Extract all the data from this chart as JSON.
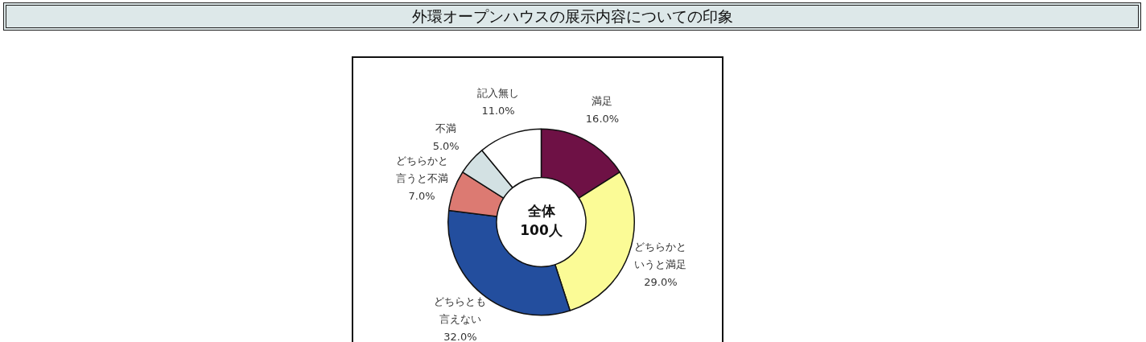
{
  "chart_data": {
    "type": "donut",
    "title": "外環オープンハウスの展示内容についての印象",
    "categories": [
      "満足",
      "どちらかというと満足",
      "どちらとも言えない",
      "どちらかと言うと不満",
      "不満",
      "記入無し"
    ],
    "values": [
      16,
      29,
      32,
      7,
      5,
      11
    ],
    "value_labels": [
      "16.0%",
      "29.0%",
      "32.0%",
      "7.0%",
      "5.0%",
      "11.0%"
    ],
    "colors": [
      "#6e1145",
      "#fbfb96",
      "#234e9e",
      "#dc7a72",
      "#d3e1e3",
      "#ffffff"
    ],
    "annotations": [
      "全体",
      "100人"
    ],
    "legend": false
  }
}
